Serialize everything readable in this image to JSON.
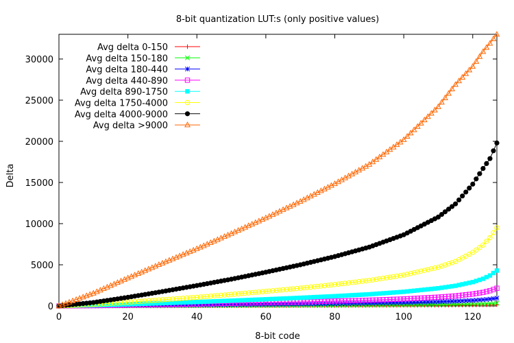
{
  "chart_data": {
    "type": "line",
    "title": "8-bit quantization LUT:s (only positive values)",
    "xlabel": "8-bit code",
    "ylabel": "Delta",
    "xlim": [
      0,
      127
    ],
    "ylim": [
      0,
      33000
    ],
    "xticks": [
      0,
      20,
      40,
      60,
      80,
      100,
      120
    ],
    "yticks": [
      0,
      5000,
      10000,
      15000,
      20000,
      25000,
      30000
    ],
    "legend_position": "top-left",
    "x_points": [
      0,
      10,
      20,
      30,
      40,
      50,
      60,
      70,
      80,
      90,
      100,
      110,
      115,
      120,
      123,
      125,
      127
    ],
    "series": [
      {
        "name": "Avg delta 0-150",
        "color": "#ff0000",
        "marker": "plus",
        "values": [
          0,
          2,
          6,
          10,
          14,
          20,
          26,
          34,
          42,
          52,
          66,
          84,
          96,
          112,
          125,
          135,
          150
        ]
      },
      {
        "name": "Avg delta 150-180",
        "color": "#00ff00",
        "marker": "cross",
        "values": [
          0,
          4,
          10,
          20,
          30,
          42,
          56,
          72,
          90,
          110,
          140,
          175,
          200,
          240,
          270,
          300,
          330
        ]
      },
      {
        "name": "Avg delta 180-440",
        "color": "#0000ff",
        "marker": "star",
        "values": [
          0,
          20,
          50,
          85,
          120,
          160,
          200,
          245,
          290,
          345,
          410,
          510,
          580,
          680,
          760,
          840,
          950
        ]
      },
      {
        "name": "Avg delta 440-890",
        "color": "#ff00ff",
        "marker": "square-open",
        "values": [
          0,
          40,
          100,
          170,
          240,
          320,
          400,
          490,
          590,
          700,
          850,
          1070,
          1220,
          1450,
          1650,
          1850,
          2150
        ]
      },
      {
        "name": "Avg delta 890-1750",
        "color": "#00ffff",
        "marker": "square-filled",
        "values": [
          0,
          80,
          200,
          340,
          480,
          640,
          810,
          990,
          1190,
          1420,
          1720,
          2150,
          2450,
          2900,
          3300,
          3700,
          4300
        ]
      },
      {
        "name": "Avg delta 1750-4000",
        "color": "#ffff00",
        "marker": "circle-open",
        "values": [
          0,
          180,
          450,
          750,
          1050,
          1400,
          1770,
          2160,
          2600,
          3100,
          3750,
          4700,
          5400,
          6500,
          7400,
          8300,
          9500
        ]
      },
      {
        "name": "Avg delta 4000-9000",
        "color": "#000000",
        "marker": "circle-filled",
        "values": [
          0,
          420,
          1050,
          1750,
          2480,
          3250,
          4100,
          5000,
          6000,
          7150,
          8650,
          10800,
          12400,
          14800,
          16700,
          17900,
          19800
        ]
      },
      {
        "name": "Avg delta >9000",
        "color": "#ff6600",
        "marker": "triangle-open",
        "values": [
          0,
          1550,
          3400,
          5200,
          6950,
          8800,
          10700,
          12700,
          14850,
          17200,
          20200,
          24200,
          26900,
          29100,
          30900,
          31900,
          33000
        ]
      }
    ]
  }
}
